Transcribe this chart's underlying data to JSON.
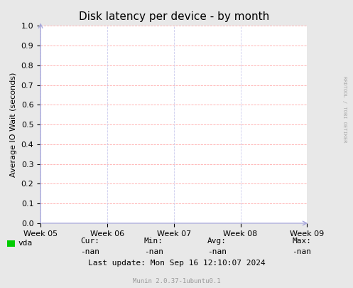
{
  "title": "Disk latency per device - by month",
  "ylabel": "Average IO Wait (seconds)",
  "xlabels": [
    "Week 05",
    "Week 06",
    "Week 07",
    "Week 08",
    "Week 09"
  ],
  "ylim": [
    0.0,
    1.0
  ],
  "yticks": [
    0.0,
    0.1,
    0.2,
    0.3,
    0.4,
    0.5,
    0.6,
    0.7,
    0.8,
    0.9,
    1.0
  ],
  "bg_color": "#e8e8e8",
  "plot_bg_color": "#ffffff",
  "grid_color_h": "#ffaaaa",
  "grid_color_v": "#ccccee",
  "title_fontsize": 11,
  "axis_label_fontsize": 8,
  "tick_fontsize": 8,
  "legend_label": "vda",
  "legend_color": "#00cc00",
  "cur_val": "-nan",
  "min_val": "-nan",
  "avg_val": "-nan",
  "max_val": "-nan",
  "last_update": "Last update: Mon Sep 16 12:10:07 2024",
  "footer": "Munin 2.0.37-1ubuntu0.1",
  "rrdtool_label": "RRDTOOL / TOBI OETIKER",
  "arrow_color": "#aaaadd"
}
